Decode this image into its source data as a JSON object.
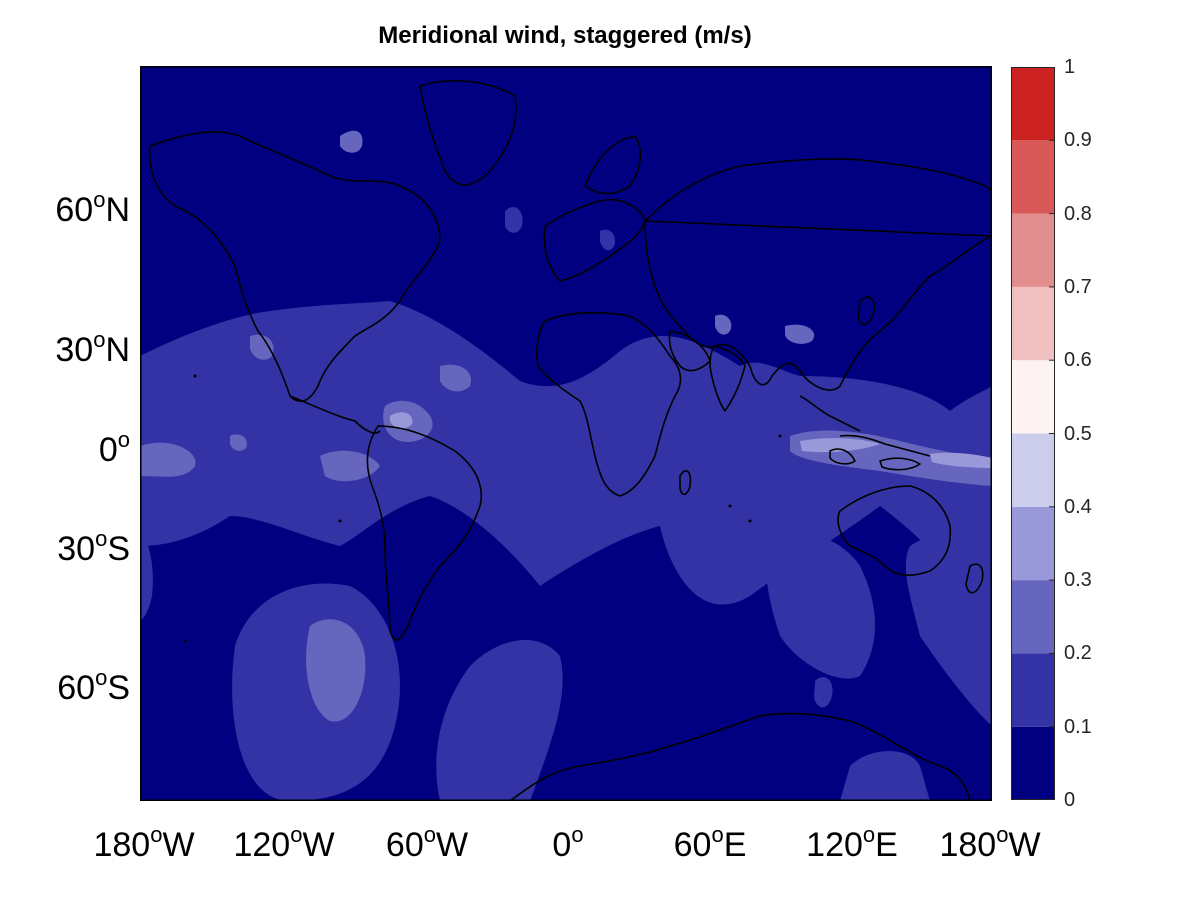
{
  "title": "Meridional wind, staggered (m/s)",
  "map": {
    "projection": "mercator",
    "lon_range": [
      -180,
      180
    ],
    "lat_range": [
      -80,
      80
    ],
    "base_color": "#000080",
    "coastline_color": "#000000",
    "y_ticks": [
      {
        "lat": 60,
        "value": "60",
        "hemi": "N"
      },
      {
        "lat": 30,
        "value": "30",
        "hemi": "N"
      },
      {
        "lat": 0,
        "value": "0",
        "hemi": ""
      },
      {
        "lat": -30,
        "value": "30",
        "hemi": "S"
      },
      {
        "lat": -60,
        "value": "60",
        "hemi": "S"
      }
    ],
    "x_ticks": [
      {
        "lon": -180,
        "value": "180",
        "hemi": "W"
      },
      {
        "lon": -120,
        "value": "120",
        "hemi": "W"
      },
      {
        "lon": -60,
        "value": "60",
        "hemi": "W"
      },
      {
        "lon": 0,
        "value": "0",
        "hemi": ""
      },
      {
        "lon": 60,
        "value": "60",
        "hemi": "E"
      },
      {
        "lon": 120,
        "value": "120",
        "hemi": "E"
      },
      {
        "lon": 180,
        "value": "180",
        "hemi": "W"
      }
    ],
    "degree_symbol": "o"
  },
  "colorbar": {
    "ticks": [
      "0",
      "0.1",
      "0.2",
      "0.3",
      "0.4",
      "0.5",
      "0.6",
      "0.7",
      "0.8",
      "0.9",
      "1"
    ],
    "levels": [
      {
        "from": 0.0,
        "to": 0.1,
        "color": "#000080"
      },
      {
        "from": 0.1,
        "to": 0.2,
        "color": "#3333a6"
      },
      {
        "from": 0.2,
        "to": 0.3,
        "color": "#6666bf"
      },
      {
        "from": 0.3,
        "to": 0.4,
        "color": "#9999d9"
      },
      {
        "from": 0.4,
        "to": 0.5,
        "color": "#ccccec"
      },
      {
        "from": 0.5,
        "to": 0.6,
        "color": "#fdf3f3"
      },
      {
        "from": 0.6,
        "to": 0.7,
        "color": "#f0bfbf"
      },
      {
        "from": 0.7,
        "to": 0.8,
        "color": "#e38e8e"
      },
      {
        "from": 0.8,
        "to": 0.9,
        "color": "#d95959"
      },
      {
        "from": 0.9,
        "to": 1.0,
        "color": "#cc2222"
      }
    ]
  }
}
